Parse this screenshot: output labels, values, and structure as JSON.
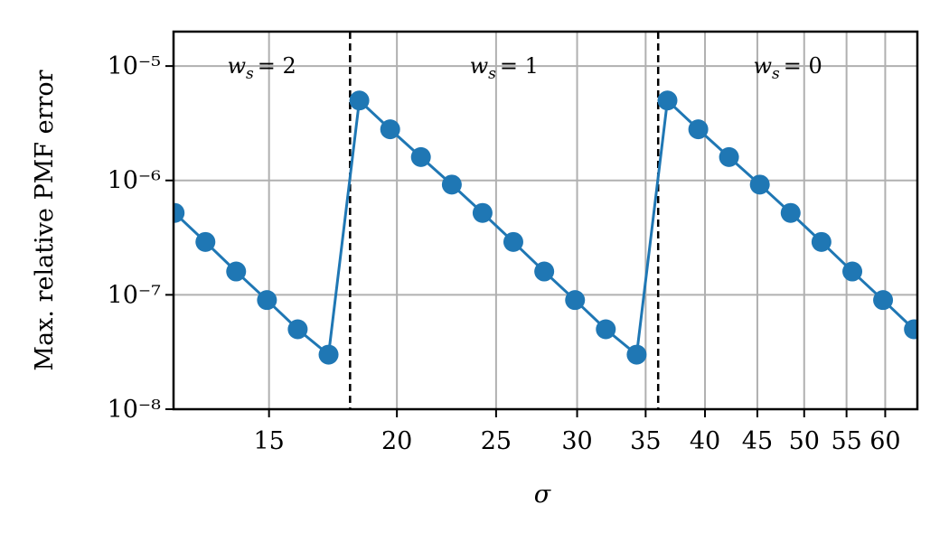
{
  "chart_data": {
    "type": "line",
    "xlabel": "σ",
    "ylabel": "Max. relative PMF error",
    "xscale": "log",
    "yscale": "log",
    "grid": true,
    "xlim": [
      12.1,
      64.5
    ],
    "ylim": [
      1e-08,
      2e-05
    ],
    "xticks": [
      15,
      20,
      25,
      30,
      35,
      40,
      45,
      50,
      55,
      60
    ],
    "yticks": [
      {
        "value": 1e-08,
        "label": "10⁻⁸"
      },
      {
        "value": 1e-07,
        "label": "10⁻⁷"
      },
      {
        "value": 1e-06,
        "label": "10⁻⁶"
      },
      {
        "value": 1e-05,
        "label": "10⁻⁵"
      }
    ],
    "vlines": [
      18,
      36
    ],
    "annotations": [
      {
        "var": "w",
        "sub": "s",
        "text": "= 2"
      },
      {
        "var": "w",
        "sub": "s",
        "text": "= 1"
      },
      {
        "var": "w",
        "sub": "s",
        "text": "= 0"
      }
    ],
    "series": [
      {
        "color": "#1f77b4",
        "x": [
          12.13,
          13.0,
          13.93,
          14.93,
          16.0,
          17.15,
          18.38,
          19.7,
          21.11,
          22.63,
          24.25,
          25.99,
          27.86,
          29.86,
          32.0,
          34.3,
          36.76,
          39.4,
          42.22,
          45.25,
          48.5,
          51.98,
          55.72,
          59.71,
          64.0
        ],
        "values": [
          5.2e-07,
          2.9e-07,
          1.6e-07,
          9e-08,
          5e-08,
          3e-08,
          5e-06,
          2.8e-06,
          1.6e-06,
          9.2e-07,
          5.2e-07,
          2.9e-07,
          1.6e-07,
          9e-08,
          5e-08,
          3e-08,
          5e-06,
          2.8e-06,
          1.6e-06,
          9.2e-07,
          5.2e-07,
          2.9e-07,
          1.6e-07,
          9e-08,
          5e-08
        ]
      }
    ]
  }
}
